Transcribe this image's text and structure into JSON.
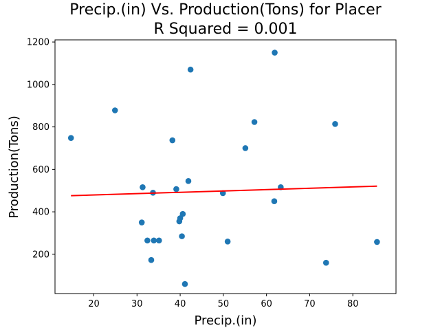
{
  "chart_data": {
    "type": "scatter",
    "title_line1": "Precip.(in) Vs. Production(Tons) for Placer",
    "title_line2": "R Squared =  0.001",
    "xlabel": "Precip.(in)",
    "ylabel": "Production(Tons)",
    "xlim": [
      11,
      90
    ],
    "ylim": [
      15,
      1210
    ],
    "x_ticks": [
      20,
      30,
      40,
      50,
      60,
      70,
      80
    ],
    "y_ticks": [
      200,
      400,
      600,
      800,
      1000,
      1200
    ],
    "grid": false,
    "points": [
      {
        "x": 14.7,
        "y": 748
      },
      {
        "x": 24.9,
        "y": 878
      },
      {
        "x": 31.1,
        "y": 350
      },
      {
        "x": 31.3,
        "y": 516
      },
      {
        "x": 32.4,
        "y": 265
      },
      {
        "x": 33.3,
        "y": 173
      },
      {
        "x": 33.7,
        "y": 490
      },
      {
        "x": 33.9,
        "y": 265
      },
      {
        "x": 35.1,
        "y": 265
      },
      {
        "x": 38.2,
        "y": 737
      },
      {
        "x": 39.1,
        "y": 507
      },
      {
        "x": 39.8,
        "y": 355
      },
      {
        "x": 40.0,
        "y": 370
      },
      {
        "x": 40.4,
        "y": 285
      },
      {
        "x": 40.6,
        "y": 390
      },
      {
        "x": 41.1,
        "y": 60
      },
      {
        "x": 41.9,
        "y": 545
      },
      {
        "x": 42.4,
        "y": 1070
      },
      {
        "x": 49.9,
        "y": 488
      },
      {
        "x": 51.0,
        "y": 260
      },
      {
        "x": 55.1,
        "y": 700
      },
      {
        "x": 57.2,
        "y": 823
      },
      {
        "x": 61.8,
        "y": 450
      },
      {
        "x": 61.9,
        "y": 1150
      },
      {
        "x": 63.3,
        "y": 516
      },
      {
        "x": 73.8,
        "y": 160
      },
      {
        "x": 75.9,
        "y": 814
      },
      {
        "x": 85.6,
        "y": 258
      }
    ],
    "trendline": {
      "x": [
        14.7,
        85.6
      ],
      "y": [
        476,
        521
      ]
    },
    "point_color": "#1f77b4",
    "trendline_color": "#ff0000"
  }
}
